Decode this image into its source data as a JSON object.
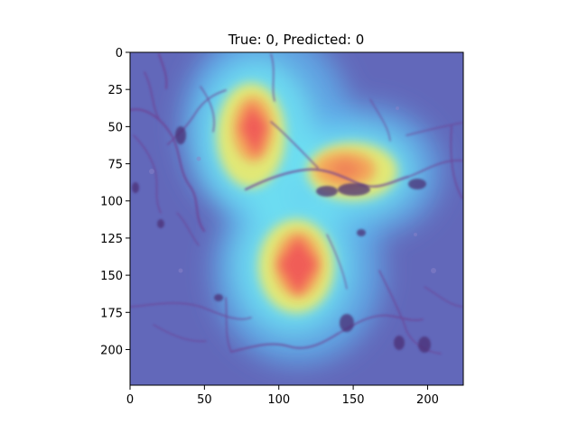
{
  "title": "True: 0, Predicted: 0",
  "image": {
    "description_tag": "gradcam-heatmap-overlay-on-histology-tissue",
    "colors": {
      "background_blue": "#5f63b8",
      "tissue_purple": "#7a4aa0",
      "heat_cyan": "#56d8f0",
      "heat_yellow": "#f2e65a",
      "heat_orange": "#f4a256",
      "heat_red": "#f05a55"
    }
  },
  "axes": {
    "x": {
      "lim": [
        0,
        224
      ],
      "ticks": [
        {
          "value": 0,
          "label": "0"
        },
        {
          "value": 50,
          "label": "50"
        },
        {
          "value": 100,
          "label": "100"
        },
        {
          "value": 150,
          "label": "150"
        },
        {
          "value": 200,
          "label": "200"
        }
      ]
    },
    "y": {
      "lim": [
        0,
        224
      ],
      "ticks": [
        {
          "value": 0,
          "label": "0"
        },
        {
          "value": 25,
          "label": "25"
        },
        {
          "value": 50,
          "label": "50"
        },
        {
          "value": 75,
          "label": "75"
        },
        {
          "value": 100,
          "label": "100"
        },
        {
          "value": 125,
          "label": "125"
        },
        {
          "value": 150,
          "label": "150"
        },
        {
          "value": 175,
          "label": "175"
        },
        {
          "value": 200,
          "label": "200"
        }
      ]
    }
  },
  "hotspots": [
    {
      "name": "upper-left-peak",
      "x": 80,
      "y": 50,
      "level": 0.95
    },
    {
      "name": "right-peak",
      "x": 150,
      "y": 80,
      "level": 0.85
    },
    {
      "name": "lower-peak",
      "x": 112,
      "y": 143,
      "level": 1.0
    }
  ]
}
